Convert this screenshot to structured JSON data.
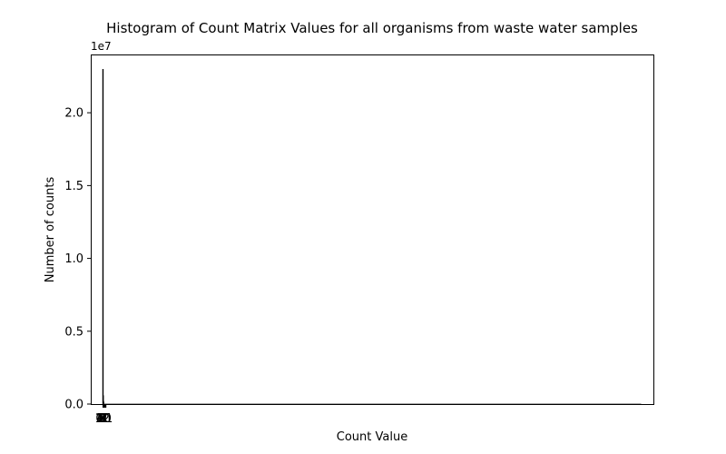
{
  "chart_data": {
    "type": "bar",
    "title": "Histogram of Count Matrix Values for all organisms from waste water samples",
    "xlabel": "Count Value",
    "ylabel": "Number of counts",
    "y_offset_label": "1e7",
    "y_scale": 10000000,
    "yticks": [
      0.0,
      0.5,
      1.0,
      1.5,
      2.0
    ],
    "ytick_labels": [
      "0.0",
      "0.5",
      "1.0",
      "1.5",
      "2.0"
    ],
    "ylim": [
      0,
      2.4
    ],
    "xlim": [
      -50,
      2250
    ],
    "grid": false,
    "legend": "none",
    "bars": [
      {
        "x": 0,
        "value": 2.3
      },
      {
        "x": 1,
        "value": 0.06
      },
      {
        "x": 2,
        "value": 0.02
      },
      {
        "x": 3,
        "value": 0.01
      }
    ],
    "baseline_extent": [
      0,
      2200
    ],
    "xtick_labels_cluster": [
      "0",
      "1",
      "2",
      "3",
      "4",
      "5",
      "6",
      "7",
      "8",
      "9",
      "10",
      "11",
      "12"
    ],
    "colors": {
      "bar": "#000000",
      "axis": "#000000"
    }
  }
}
